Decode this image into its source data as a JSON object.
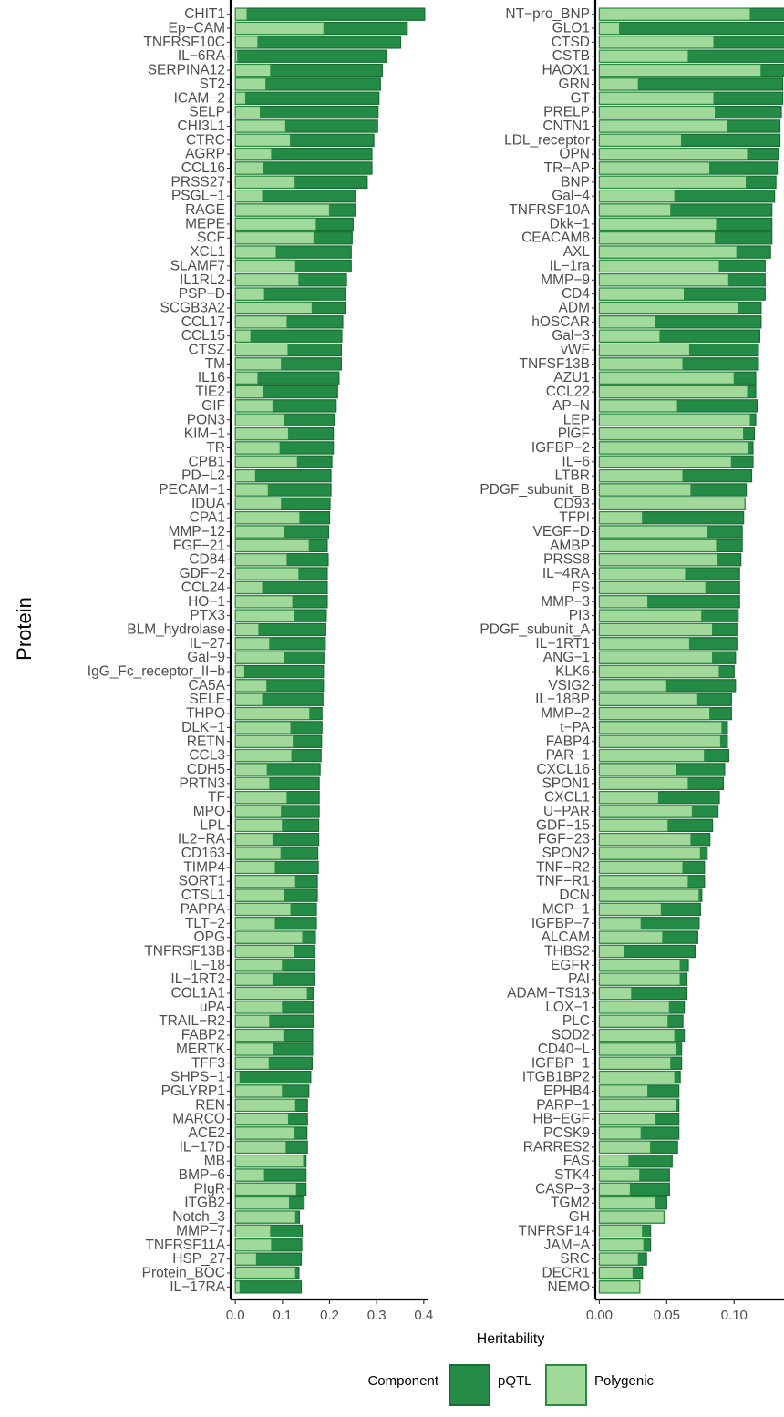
{
  "colors": {
    "pqtl": "#238b45",
    "pqtl_stroke": "#1a6b33",
    "polygenic": "#a1d99b",
    "polygenic_stroke": "#2a8a40",
    "axis": "#000000"
  },
  "chart_data": [
    {
      "type": "bar",
      "orientation": "horizontal",
      "stacked": true,
      "xlabel": "",
      "ylabel": "Protein",
      "xlim": [
        -0.01,
        0.41
      ],
      "xticks": [
        "0.0",
        "0.1",
        "0.2",
        "0.3",
        "0.4"
      ],
      "categories": [
        "CHIT1",
        "Ep−CAM",
        "TNFRSF10C",
        "IL−6RA",
        "SERPINA12",
        "ST2",
        "ICAM−2",
        "SELP",
        "CHI3L1",
        "CTRC",
        "AGRP",
        "CCL16",
        "PRSS27",
        "PSGL−1",
        "RAGE",
        "MEPE",
        "SCF",
        "XCL1",
        "SLAMF7",
        "IL1RL2",
        "PSP−D",
        "SCGB3A2",
        "CCL17",
        "CCL15",
        "CTSZ",
        "TM",
        "IL16",
        "TIE2",
        "GIF",
        "PON3",
        "KIM−1",
        "TR",
        "CPB1",
        "PD−L2",
        "PECAM−1",
        "IDUA",
        "CPA1",
        "MMP−12",
        "FGF−21",
        "CD84",
        "GDF−2",
        "CCL24",
        "HO−1",
        "PTX3",
        "BLM_hydrolase",
        "IL−27",
        "Gal−9",
        "IgG_Fc_receptor_II−b",
        "CA5A",
        "SELE",
        "THPO",
        "DLK−1",
        "RETN",
        "CCL3",
        "CDH5",
        "PRTN3",
        "TF",
        "MPO",
        "LPL",
        "IL2−RA",
        "CD163",
        "TIMP4",
        "SORT1",
        "CTSL1",
        "PAPPA",
        "TLT−2",
        "OPG",
        "TNFRSF13B",
        "IL−18",
        "IL−1RT2",
        "COL1A1",
        "uPA",
        "TRAIL−R2",
        "FABP2",
        "MERTK",
        "TFF3",
        "SHPS−1",
        "PGLYRP1",
        "REN",
        "MARCO",
        "ACE2",
        "IL−17D",
        "MB",
        "BMP−6",
        "PIgR",
        "ITGB2",
        "Notch_3",
        "MMP−7",
        "TNFRSF11A",
        "HSP_27",
        "Protein_BOC",
        "IL−17RA"
      ],
      "series": [
        {
          "name": "Polygenic",
          "values": [
            0.025,
            0.188,
            0.048,
            0.005,
            0.075,
            0.065,
            0.022,
            0.053,
            0.107,
            0.117,
            0.077,
            0.06,
            0.127,
            0.058,
            0.2,
            0.172,
            0.167,
            0.087,
            0.128,
            0.135,
            0.062,
            0.163,
            0.11,
            0.033,
            0.112,
            0.098,
            0.048,
            0.06,
            0.08,
            0.105,
            0.113,
            0.095,
            0.132,
            0.043,
            0.07,
            0.098,
            0.137,
            0.105,
            0.157,
            0.11,
            0.135,
            0.058,
            0.122,
            0.125,
            0.05,
            0.073,
            0.105,
            0.02,
            0.067,
            0.058,
            0.158,
            0.118,
            0.123,
            0.12,
            0.068,
            0.073,
            0.11,
            0.098,
            0.1,
            0.08,
            0.097,
            0.085,
            0.128,
            0.105,
            0.118,
            0.085,
            0.143,
            0.125,
            0.1,
            0.08,
            0.153,
            0.1,
            0.073,
            0.103,
            0.082,
            0.072,
            0.01,
            0.1,
            0.128,
            0.113,
            0.125,
            0.108,
            0.145,
            0.062,
            0.13,
            0.115,
            0.128,
            0.075,
            0.077,
            0.045,
            0.128,
            0.01
          ]
        },
        {
          "name": "pQTL",
          "values": [
            0.377,
            0.177,
            0.303,
            0.315,
            0.237,
            0.243,
            0.283,
            0.25,
            0.195,
            0.177,
            0.213,
            0.23,
            0.153,
            0.197,
            0.055,
            0.078,
            0.081,
            0.159,
            0.118,
            0.101,
            0.171,
            0.07,
            0.118,
            0.193,
            0.113,
            0.127,
            0.172,
            0.157,
            0.134,
            0.105,
            0.095,
            0.113,
            0.073,
            0.16,
            0.133,
            0.103,
            0.063,
            0.093,
            0.038,
            0.087,
            0.06,
            0.137,
            0.073,
            0.068,
            0.142,
            0.118,
            0.083,
            0.167,
            0.12,
            0.128,
            0.026,
            0.066,
            0.06,
            0.062,
            0.112,
            0.105,
            0.068,
            0.08,
            0.077,
            0.097,
            0.078,
            0.091,
            0.046,
            0.069,
            0.054,
            0.087,
            0.027,
            0.043,
            0.068,
            0.087,
            0.012,
            0.065,
            0.092,
            0.061,
            0.082,
            0.091,
            0.15,
            0.056,
            0.025,
            0.04,
            0.027,
            0.045,
            0.005,
            0.088,
            0.02,
            0.031,
            0.008,
            0.067,
            0.064,
            0.095,
            0.007,
            0.13
          ]
        }
      ]
    },
    {
      "type": "bar",
      "orientation": "horizontal",
      "stacked": true,
      "xlabel": "Heritability",
      "ylabel": "",
      "xlim": [
        -0.003,
        0.137
      ],
      "xticks": [
        "0.00",
        "0.05",
        "0.10"
      ],
      "categories": [
        "NT−pro_BNP",
        "GLO1",
        "CTSD",
        "CSTB",
        "HAOX1",
        "GRN",
        "GT",
        "PRELP",
        "CNTN1",
        "LDL_receptor",
        "OPN",
        "TR−AP",
        "BNP",
        "Gal−4",
        "TNFRSF10A",
        "Dkk−1",
        "CEACAM8",
        "AXL",
        "IL−1ra",
        "MMP−9",
        "CD4",
        "ADM",
        "hOSCAR",
        "Gal−3",
        "vWF",
        "TNFSF13B",
        "AZU1",
        "CCL22",
        "AP−N",
        "LEP",
        "PlGF",
        "IGFBP−2",
        "IL−6",
        "LTBR",
        "PDGF_subunit_B",
        "CD93",
        "TFPI",
        "VEGF−D",
        "AMBP",
        "PRSS8",
        "IL−4RA",
        "FS",
        "MMP−3",
        "PI3",
        "PDGF_subunit_A",
        "IL−1RT1",
        "ANG−1",
        "KLK6",
        "VSIG2",
        "IL−18BP",
        "MMP−2",
        "t−PA",
        "FABP4",
        "PAR−1",
        "CXCL16",
        "SPON1",
        "CXCL1",
        "U−PAR",
        "GDF−15",
        "FGF−23",
        "SPON2",
        "TNF−R2",
        "TNF−R1",
        "DCN",
        "MCP−1",
        "IGFBP−7",
        "ALCAM",
        "THBS2",
        "EGFR",
        "PAI",
        "ADAM−TS13",
        "LOX−1",
        "PLC",
        "SOD2",
        "CD40−L",
        "IGFBP−1",
        "ITGB1BP2",
        "EPHB4",
        "PARP−1",
        "HB−EGF",
        "PCSK9",
        "RARRES2",
        "FAS",
        "STK4",
        "CASP−3",
        "TGM2",
        "GH",
        "TNFRSF14",
        "JAM−A",
        "SRC",
        "DECR1",
        "NEMO"
      ],
      "series": [
        {
          "name": "Polygenic",
          "values": [
            0.112,
            0.015,
            0.085,
            0.066,
            0.12,
            0.029,
            0.085,
            0.086,
            0.095,
            0.061,
            0.11,
            0.082,
            0.109,
            0.056,
            0.053,
            0.087,
            0.086,
            0.102,
            0.089,
            0.096,
            0.063,
            0.103,
            0.042,
            0.045,
            0.067,
            0.062,
            0.1,
            0.11,
            0.058,
            0.112,
            0.107,
            0.111,
            0.098,
            0.062,
            0.068,
            0.108,
            0.032,
            0.08,
            0.087,
            0.088,
            0.064,
            0.079,
            0.036,
            0.076,
            0.084,
            0.067,
            0.084,
            0.089,
            0.05,
            0.073,
            0.082,
            0.091,
            0.09,
            0.078,
            0.057,
            0.066,
            0.044,
            0.069,
            0.051,
            0.068,
            0.075,
            0.062,
            0.066,
            0.074,
            0.046,
            0.031,
            0.047,
            0.019,
            0.06,
            0.06,
            0.024,
            0.052,
            0.051,
            0.056,
            0.057,
            0.053,
            0.056,
            0.036,
            0.057,
            0.042,
            0.031,
            0.038,
            0.022,
            0.03,
            0.023,
            0.042,
            0.048,
            0.032,
            0.033,
            0.029,
            0.025,
            0.03
          ]
        },
        {
          "name": "pQTL",
          "values": [
            0.028,
            0.125,
            0.055,
            0.073,
            0.018,
            0.107,
            0.051,
            0.049,
            0.039,
            0.073,
            0.023,
            0.05,
            0.022,
            0.074,
            0.075,
            0.041,
            0.042,
            0.025,
            0.034,
            0.027,
            0.06,
            0.017,
            0.078,
            0.074,
            0.051,
            0.056,
            0.016,
            0.006,
            0.059,
            0.004,
            0.008,
            0.003,
            0.016,
            0.051,
            0.041,
            0,
            0.075,
            0.026,
            0.019,
            0.017,
            0.04,
            0.025,
            0.068,
            0.027,
            0.018,
            0.035,
            0.017,
            0.011,
            0.051,
            0.025,
            0.016,
            0.004,
            0.005,
            0.018,
            0.036,
            0.026,
            0.045,
            0.019,
            0.033,
            0.014,
            0.005,
            0.016,
            0.012,
            0.002,
            0.029,
            0.043,
            0.026,
            0.052,
            0.006,
            0.005,
            0.041,
            0.011,
            0.011,
            0.007,
            0.004,
            0.008,
            0.004,
            0.023,
            0.002,
            0.017,
            0.028,
            0.02,
            0.032,
            0.022,
            0.029,
            0.008,
            0,
            0.006,
            0.005,
            0.006,
            0.007,
            0
          ]
        }
      ]
    }
  ],
  "legend": {
    "title": "Component",
    "items": [
      {
        "label": "pQTL",
        "key": "pqtl"
      },
      {
        "label": "Polygenic",
        "key": "polygenic"
      }
    ]
  }
}
